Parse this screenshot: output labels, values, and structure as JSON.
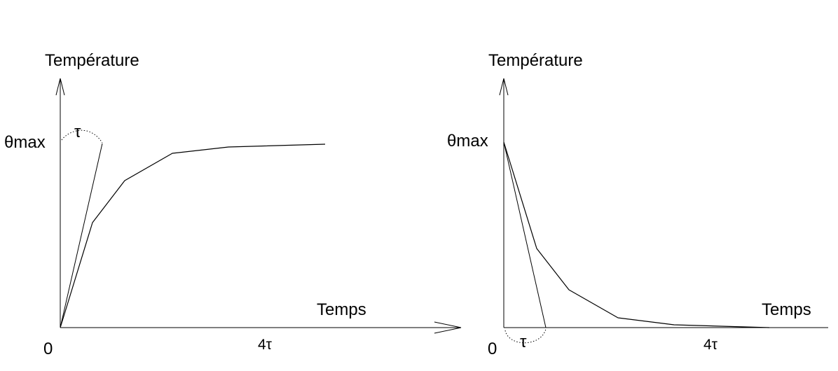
{
  "diagrams": [
    {
      "kind": "heating",
      "y_label": "Température",
      "x_label": "Temps",
      "theta_label": "θmax",
      "origin_label": "0",
      "tau_label": "τ",
      "four_tau_label": "4τ"
    },
    {
      "kind": "cooling",
      "y_label": "Température",
      "x_label": "Temps",
      "theta_label": "θmax",
      "origin_label": "0",
      "tau_label": "τ",
      "four_tau_label": "4τ"
    }
  ]
}
